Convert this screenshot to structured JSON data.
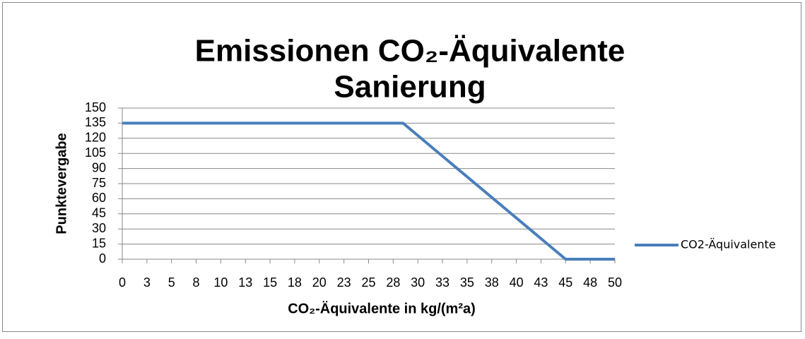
{
  "chart_data": {
    "type": "line",
    "title": [
      "Emissionen CO₂-Äquivalente",
      "Sanierung"
    ],
    "x_label": "CO₂-Äquivalente in kg/(m²a)",
    "y_label": "Punktevergabe",
    "x": [
      0,
      28.5,
      45,
      50
    ],
    "series": [
      {
        "name": "CO2-Äquivalente",
        "color": "#4a7ebb",
        "values": [
          135,
          135,
          0,
          0
        ]
      }
    ],
    "xlim": [
      0,
      50
    ],
    "xticks": [
      0,
      {
        "value": 2.5,
        "label": "3"
      },
      5,
      {
        "value": 7.5,
        "label": "8"
      },
      10,
      {
        "value": 12.5,
        "label": "13"
      },
      15,
      {
        "value": 17.5,
        "label": "18"
      },
      20,
      {
        "value": 22.5,
        "label": "23"
      },
      25,
      {
        "value": 27.5,
        "label": "28"
      },
      30,
      {
        "value": 32.5,
        "label": "33"
      },
      35,
      {
        "value": 37.5,
        "label": "38"
      },
      40,
      {
        "value": 42.5,
        "label": "43"
      },
      45,
      {
        "value": 47.5,
        "label": "48"
      },
      50
    ],
    "ylim": [
      0,
      150
    ],
    "yticks": [
      0,
      15,
      30,
      45,
      60,
      75,
      90,
      105,
      120,
      135,
      150
    ],
    "grid": true,
    "legend": "right"
  }
}
